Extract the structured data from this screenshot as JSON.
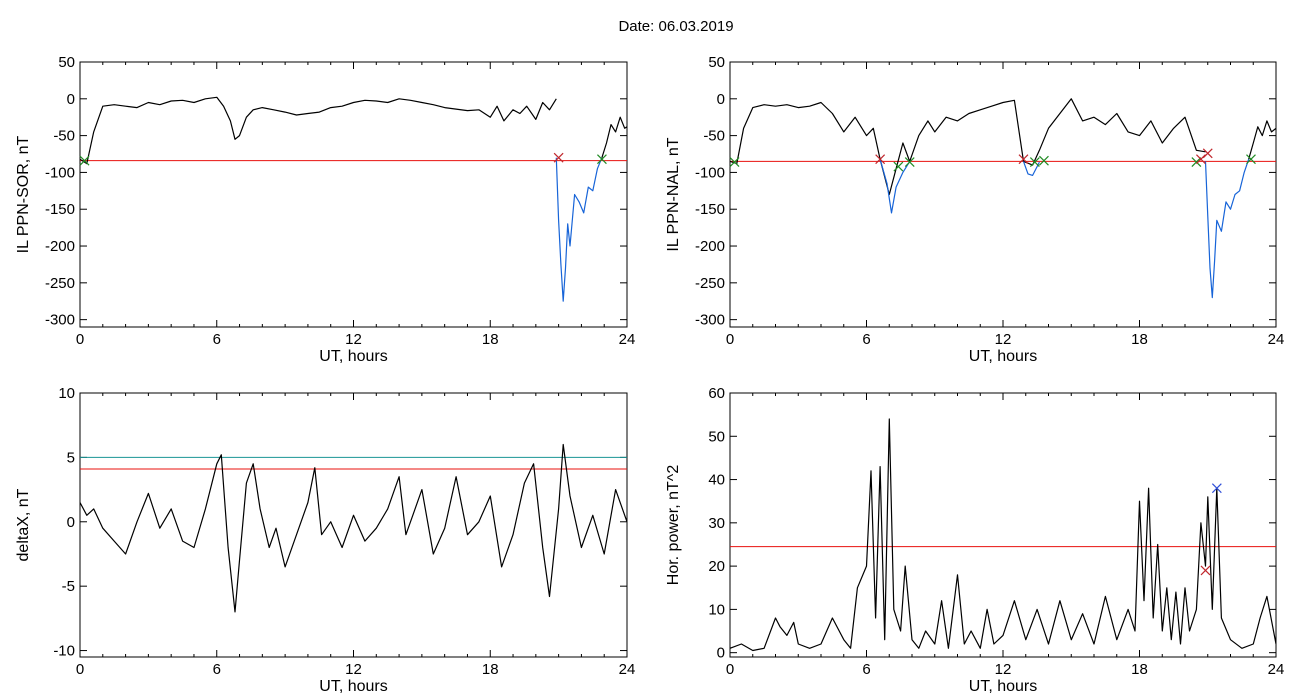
{
  "title": "Date:  06.03.2019",
  "colors": {
    "curve": "#000000",
    "threshold": "#e8110e",
    "threshold2": "#189595",
    "substorm": "#1764d8",
    "onset": "#1f8a23",
    "end": "#c0272d",
    "peak": "#2f4fd8"
  },
  "chart_data": [
    {
      "type": "line",
      "id": "sor",
      "xlabel": "UT, hours",
      "ylabel": "IL PPN-SOR, nT",
      "xlim": [
        0,
        24
      ],
      "ylim": [
        -310,
        50
      ],
      "xticks": [
        0,
        6,
        12,
        18,
        24
      ],
      "yticks": [
        50,
        0,
        -50,
        -100,
        -150,
        -200,
        -250,
        -300
      ],
      "threshold": -84,
      "series": [
        {
          "role": "baseline",
          "color": "#000000",
          "x": [
            0,
            0.3,
            0.6,
            1,
            1.5,
            2,
            2.5,
            3,
            3.5,
            4,
            4.5,
            5,
            5.5,
            6,
            6.3,
            6.6,
            6.8,
            7,
            7.3,
            7.6,
            8,
            8.5,
            9,
            9.5,
            10,
            10.5,
            11,
            11.5,
            12,
            12.5,
            13,
            13.5,
            14,
            14.5,
            15,
            15.5,
            16,
            16.5,
            17,
            17.5,
            18,
            18.3,
            18.6,
            19,
            19.3,
            19.6,
            20,
            20.3,
            20.6,
            20.9
          ],
          "y": [
            -82,
            -88,
            -45,
            -10,
            -8,
            -10,
            -12,
            -5,
            -8,
            -3,
            -2,
            -5,
            0,
            2,
            -10,
            -30,
            -55,
            -50,
            -25,
            -15,
            -12,
            -15,
            -18,
            -22,
            -20,
            -18,
            -12,
            -10,
            -5,
            -2,
            -3,
            -5,
            0,
            -2,
            -5,
            -8,
            -12,
            -14,
            -16,
            -15,
            -25,
            -10,
            -30,
            -15,
            -20,
            -10,
            -28,
            -5,
            -15,
            0
          ]
        },
        {
          "role": "substorm",
          "color": "#1764d8",
          "x": [
            20.9,
            21,
            21.1,
            21.2,
            21.3,
            21.4,
            21.5,
            21.7,
            21.9,
            22.1,
            22.3,
            22.5,
            22.7,
            22.9
          ],
          "y": [
            -80,
            -165,
            -225,
            -275,
            -230,
            -170,
            -200,
            -130,
            -140,
            -155,
            -120,
            -125,
            -95,
            -80
          ]
        },
        {
          "role": "recovery",
          "color": "#000000",
          "x": [
            22.9,
            23.1,
            23.3,
            23.5,
            23.7,
            23.9,
            24
          ],
          "y": [
            -80,
            -60,
            -35,
            -45,
            -25,
            -40,
            -38
          ]
        }
      ],
      "markers": [
        {
          "x": 0.2,
          "y": -84,
          "type": "onset",
          "color": "#1f8a23"
        },
        {
          "x": 21.0,
          "y": -80,
          "type": "end",
          "color": "#c0272d"
        },
        {
          "x": 22.9,
          "y": -82,
          "type": "onset",
          "color": "#1f8a23"
        }
      ]
    },
    {
      "type": "line",
      "id": "nal",
      "xlabel": "UT, hours",
      "ylabel": "IL PPN-NAL, nT",
      "xlim": [
        0,
        24
      ],
      "ylim": [
        -310,
        50
      ],
      "xticks": [
        0,
        6,
        12,
        18,
        24
      ],
      "yticks": [
        50,
        0,
        -50,
        -100,
        -150,
        -200,
        -250,
        -300
      ],
      "threshold": -85,
      "series": [
        {
          "role": "baseline",
          "color": "#000000",
          "x": [
            0,
            0.3,
            0.6,
            1,
            1.5,
            2,
            2.5,
            3,
            3.5,
            4,
            4.5,
            5,
            5.5,
            6,
            6.3,
            6.6,
            7,
            7.3,
            7.6,
            7.9,
            8.3,
            8.7,
            9,
            9.5,
            10,
            10.5,
            11,
            11.5,
            12,
            12.5,
            12.9,
            13.3,
            13.6,
            14,
            14.5,
            15,
            15.5,
            16,
            16.5,
            17,
            17.5,
            18,
            18.5,
            19,
            19.5,
            20,
            20.5,
            20.9
          ],
          "y": [
            -85,
            -88,
            -40,
            -12,
            -8,
            -10,
            -8,
            -12,
            -10,
            -5,
            -20,
            -45,
            -25,
            -50,
            -40,
            -82,
            -130,
            -95,
            -60,
            -85,
            -50,
            -30,
            -45,
            -25,
            -30,
            -20,
            -15,
            -10,
            -5,
            -2,
            -85,
            -90,
            -70,
            -40,
            -20,
            0,
            -30,
            -25,
            -35,
            -20,
            -45,
            -50,
            -30,
            -60,
            -40,
            -25,
            -70,
            -72
          ]
        },
        {
          "role": "substorm",
          "color": "#1764d8",
          "x": [
            6.6,
            6.9,
            7.1,
            7.3,
            7.6,
            7.9
          ],
          "y": [
            -82,
            -115,
            -155,
            -120,
            -100,
            -85
          ]
        },
        {
          "role": "substorm",
          "color": "#1764d8",
          "x": [
            12.9,
            13.1,
            13.3,
            13.6
          ],
          "y": [
            -85,
            -102,
            -104,
            -86
          ]
        },
        {
          "role": "substorm",
          "color": "#1764d8",
          "x": [
            20.9,
            21,
            21.1,
            21.2,
            21.3,
            21.4,
            21.6,
            21.8,
            22,
            22.2,
            22.4,
            22.6,
            22.8
          ],
          "y": [
            -85,
            -160,
            -230,
            -270,
            -220,
            -165,
            -180,
            -140,
            -150,
            -130,
            -125,
            -100,
            -82
          ]
        },
        {
          "role": "recovery",
          "color": "#000000",
          "x": [
            22.8,
            23,
            23.2,
            23.4,
            23.6,
            23.8,
            24
          ],
          "y": [
            -82,
            -60,
            -38,
            -50,
            -30,
            -45,
            -40
          ]
        }
      ],
      "markers": [
        {
          "x": 0.2,
          "y": -86,
          "type": "onset",
          "color": "#1f8a23"
        },
        {
          "x": 6.6,
          "y": -82,
          "type": "end",
          "color": "#c0272d"
        },
        {
          "x": 7.4,
          "y": -92,
          "type": "onset",
          "color": "#1f8a23"
        },
        {
          "x": 7.9,
          "y": -86,
          "type": "onset",
          "color": "#1f8a23"
        },
        {
          "x": 12.9,
          "y": -82,
          "type": "end",
          "color": "#c0272d"
        },
        {
          "x": 13.4,
          "y": -86,
          "type": "onset",
          "color": "#1f8a23"
        },
        {
          "x": 13.8,
          "y": -84,
          "type": "onset",
          "color": "#1f8a23"
        },
        {
          "x": 20.5,
          "y": -86,
          "type": "onset",
          "color": "#1f8a23"
        },
        {
          "x": 20.7,
          "y": -82,
          "type": "end",
          "color": "#c0272d"
        },
        {
          "x": 21.0,
          "y": -74,
          "type": "end",
          "color": "#c0272d"
        },
        {
          "x": 22.9,
          "y": -82,
          "type": "onset",
          "color": "#1f8a23"
        }
      ]
    },
    {
      "type": "line",
      "id": "deltax",
      "xlabel": "UT, hours",
      "ylabel": "deltaX, nT",
      "xlim": [
        0,
        24
      ],
      "ylim": [
        -10.5,
        10
      ],
      "xticks": [
        0,
        6,
        12,
        18,
        24
      ],
      "yticks": [
        10,
        5,
        0,
        -5,
        -10
      ],
      "threshold": 4.1,
      "threshold2": 5.0,
      "series": [
        {
          "role": "baseline",
          "color": "#000000",
          "x": [
            0,
            0.3,
            0.6,
            1,
            1.5,
            2,
            2.5,
            3,
            3.5,
            4,
            4.5,
            5,
            5.5,
            6,
            6.2,
            6.5,
            6.8,
            7,
            7.3,
            7.6,
            7.9,
            8.3,
            8.6,
            9,
            9.5,
            10,
            10.3,
            10.6,
            11,
            11.5,
            12,
            12.5,
            13,
            13.5,
            14,
            14.3,
            14.6,
            15,
            15.5,
            16,
            16.5,
            17,
            17.5,
            18,
            18.5,
            19,
            19.5,
            19.9,
            20.3,
            20.6,
            21,
            21.2,
            21.5,
            22,
            22.5,
            23,
            23.5,
            24
          ],
          "y": [
            1.5,
            0.5,
            1,
            -0.5,
            -1.5,
            -2.5,
            0,
            2.2,
            -0.5,
            1,
            -1.5,
            -2,
            1,
            4.5,
            5.2,
            -2,
            -7,
            -3,
            3,
            4.5,
            1,
            -2,
            -0.5,
            -3.5,
            -1,
            1.5,
            4.2,
            -1,
            0,
            -2,
            0.5,
            -1.5,
            -0.5,
            1,
            3.5,
            -1,
            0.5,
            2.5,
            -2.5,
            -0.5,
            3.5,
            -1,
            0,
            2,
            -3.5,
            -1,
            3,
            4.5,
            -2,
            -5.8,
            1,
            6,
            2,
            -2,
            0.5,
            -2.5,
            2.5,
            0
          ]
        }
      ],
      "markers": []
    },
    {
      "type": "line",
      "id": "power",
      "xlabel": "UT, hours",
      "ylabel": "Hor. power, nT^2",
      "xlim": [
        0,
        24
      ],
      "ylim": [
        -1,
        60
      ],
      "xticks": [
        0,
        6,
        12,
        18,
        24
      ],
      "yticks": [
        60,
        50,
        40,
        30,
        20,
        10,
        0
      ],
      "threshold": 24.5,
      "series": [
        {
          "role": "baseline",
          "color": "#000000",
          "x": [
            0,
            0.5,
            1,
            1.5,
            2,
            2.2,
            2.5,
            2.8,
            3,
            3.5,
            4,
            4.5,
            5,
            5.3,
            5.6,
            6,
            6.2,
            6.4,
            6.6,
            6.8,
            7,
            7.2,
            7.5,
            7.7,
            8,
            8.3,
            8.6,
            9,
            9.3,
            9.6,
            10,
            10.3,
            10.6,
            11,
            11.3,
            11.6,
            12,
            12.5,
            13,
            13.5,
            14,
            14.5,
            15,
            15.5,
            16,
            16.5,
            17,
            17.5,
            17.8,
            18,
            18.2,
            18.4,
            18.6,
            18.8,
            19,
            19.2,
            19.4,
            19.6,
            19.8,
            20,
            20.2,
            20.5,
            20.7,
            20.9,
            21,
            21.2,
            21.4,
            21.6,
            22,
            22.5,
            23,
            23.3,
            23.6,
            24
          ],
          "y": [
            1,
            2,
            0.5,
            1,
            8,
            6,
            4,
            7,
            2,
            1,
            2,
            8,
            3,
            1,
            15,
            20,
            42,
            8,
            43,
            3,
            54,
            10,
            5,
            20,
            3,
            1,
            5,
            2,
            12,
            1,
            18,
            2,
            5,
            1,
            10,
            2,
            4,
            12,
            3,
            10,
            2,
            12,
            3,
            9,
            2,
            13,
            3,
            10,
            5,
            35,
            12,
            38,
            8,
            25,
            5,
            15,
            3,
            14,
            2,
            15,
            5,
            10,
            30,
            20,
            36,
            10,
            38,
            8,
            3,
            1,
            2,
            8,
            13,
            2
          ]
        }
      ],
      "markers": [
        {
          "x": 20.9,
          "y": 19,
          "type": "end",
          "color": "#c0272d"
        },
        {
          "x": 21.4,
          "y": 38,
          "type": "peak",
          "color": "#2f4fd8"
        }
      ]
    }
  ]
}
